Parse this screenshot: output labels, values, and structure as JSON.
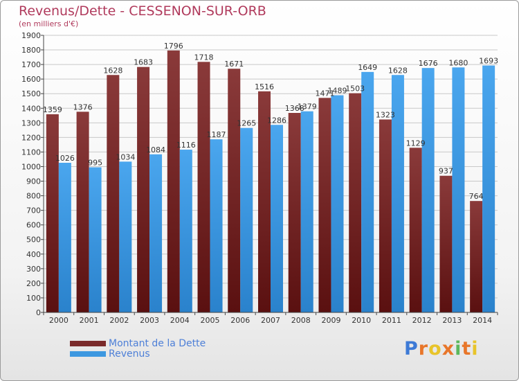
{
  "header": {
    "title": "Revenus/Dette - CESSENON-SUR-ORB",
    "subtitle": "(en milliers d'€)"
  },
  "legend": {
    "items": [
      {
        "label": "Montant de la Dette",
        "color": "#7a2a2a"
      },
      {
        "label": "Revenus",
        "color": "#3d98e0"
      }
    ]
  },
  "logo": {
    "text": "Proxiti",
    "letter_colors": [
      "#3d7ad6",
      "#e8762a",
      "#e8c42a",
      "#e8762a",
      "#5cb85c",
      "#e8762a",
      "#e8c42a"
    ]
  },
  "chart_data": {
    "type": "bar",
    "title": "Revenus/Dette - CESSENON-SUR-ORB",
    "ylim": [
      0,
      1900
    ],
    "ytick_step": 100,
    "grid": true,
    "categories": [
      "2000",
      "2001",
      "2002",
      "2003",
      "2004",
      "2005",
      "2006",
      "2007",
      "2008",
      "2009",
      "2010",
      "2011",
      "2012",
      "2013",
      "2014"
    ],
    "series": [
      {
        "name": "Montant de la Dette",
        "color": "#7a2a2a",
        "values": [
          1359,
          1376,
          1628,
          1683,
          1796,
          1718,
          1671,
          1516,
          1368,
          1471,
          1503,
          1323,
          1129,
          937,
          764
        ],
        "labels": [
          "1359",
          "1376",
          "1628",
          "1683",
          "1796",
          "1718",
          "1671",
          "1516",
          "1368",
          "1471",
          "1503",
          "1323",
          "1129",
          "937",
          "764"
        ]
      },
      {
        "name": "Revenus",
        "color": "#3d98e0",
        "values": [
          1026,
          995,
          1034,
          1084,
          1116,
          1187,
          1265,
          1286,
          1379,
          1489,
          1649,
          1628,
          1676,
          1680,
          1693
        ],
        "labels": [
          "1026",
          "995",
          "1034",
          "1084",
          "1116",
          "1187",
          "1265",
          "1286",
          "1379",
          "1489",
          "1649",
          "1628",
          "1676",
          "1680",
          "1693"
        ]
      }
    ]
  }
}
